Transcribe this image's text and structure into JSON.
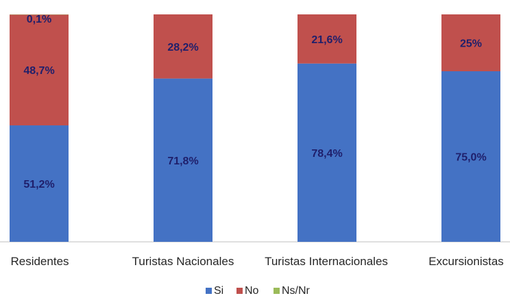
{
  "chart_data": {
    "type": "bar",
    "stacked": true,
    "percent_stacked": true,
    "categories": [
      "Residentes",
      "Turistas Nacionales",
      "Turistas Internacionales",
      "Excursionistas"
    ],
    "series": [
      {
        "name": "Si",
        "color": "#4472c4",
        "values": [
          51.2,
          71.8,
          78.4,
          75.0
        ]
      },
      {
        "name": "No",
        "color": "#c0504d",
        "values": [
          48.7,
          28.2,
          21.6,
          25.0
        ]
      },
      {
        "name": "Ns/Nr",
        "color": "#9bbb59",
        "values": [
          0.1,
          0,
          0,
          0
        ]
      }
    ],
    "data_labels": [
      [
        "51,2%",
        "71,8%",
        "78,4%",
        "75,0%"
      ],
      [
        "48,7%",
        "28,2%",
        "21,6%",
        "25%"
      ],
      [
        "0,1%",
        "",
        "",
        ""
      ]
    ],
    "ylim": [
      0,
      100
    ],
    "grid": false,
    "legend_position": "bottom",
    "title": "",
    "xlabel": "",
    "ylabel": ""
  }
}
